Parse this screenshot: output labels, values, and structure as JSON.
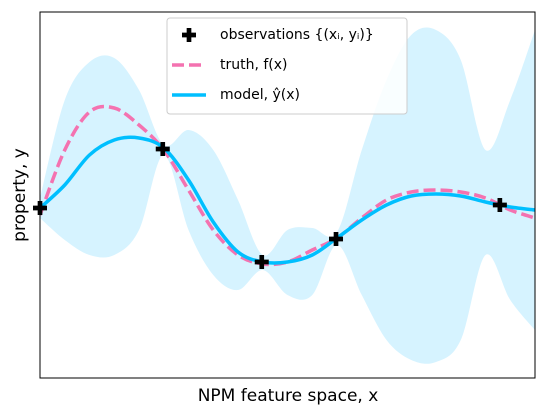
{
  "chart_data": {
    "type": "line",
    "xlabel": "NPM feature space, x",
    "ylabel": "property, y",
    "xlim": [
      0,
      1
    ],
    "ylim": [
      0,
      366
    ],
    "x": [
      0,
      0.05,
      0.1,
      0.15,
      0.2,
      0.25,
      0.3,
      0.35,
      0.4,
      0.45,
      0.5,
      0.55,
      0.6,
      0.65,
      0.7,
      0.75,
      0.8,
      0.85,
      0.9,
      0.95,
      1
    ],
    "band": {
      "color": "#d6f3ff",
      "upper": [
        180,
        278,
        316,
        320,
        288,
        233,
        248,
        228,
        178,
        123,
        148,
        150,
        146,
        228,
        298,
        343,
        348,
        318,
        228,
        278,
        348
      ],
      "lower": [
        160,
        138,
        123,
        123,
        148,
        223,
        148,
        103,
        88,
        108,
        83,
        83,
        133,
        83,
        38,
        18,
        16,
        38,
        123,
        78,
        48
      ]
    },
    "series": [
      {
        "name": "truth, f(x)",
        "color": "#f472b0",
        "dashed": true,
        "values": [
          163,
          228,
          266,
          270,
          253,
          228,
          188,
          148,
          123,
          114,
          116,
          128,
          140,
          160,
          178,
          186,
          188,
          186,
          180,
          168,
          160
        ]
      },
      {
        "name": "model, ŷ(x)",
        "color": "#00bfff",
        "dashed": false,
        "values": [
          170,
          193,
          223,
          238,
          240,
          230,
          198,
          156,
          126,
          116,
          116,
          123,
          140,
          158,
          173,
          182,
          184,
          182,
          176,
          171,
          168
        ]
      }
    ],
    "observations": {
      "name": "observations {(xᵢ, yᵢ)}",
      "color": "#000000",
      "x": [
        0,
        0.248,
        0.448,
        0.598,
        0.929
      ],
      "values": [
        170,
        229,
        116,
        139,
        173
      ]
    }
  }
}
